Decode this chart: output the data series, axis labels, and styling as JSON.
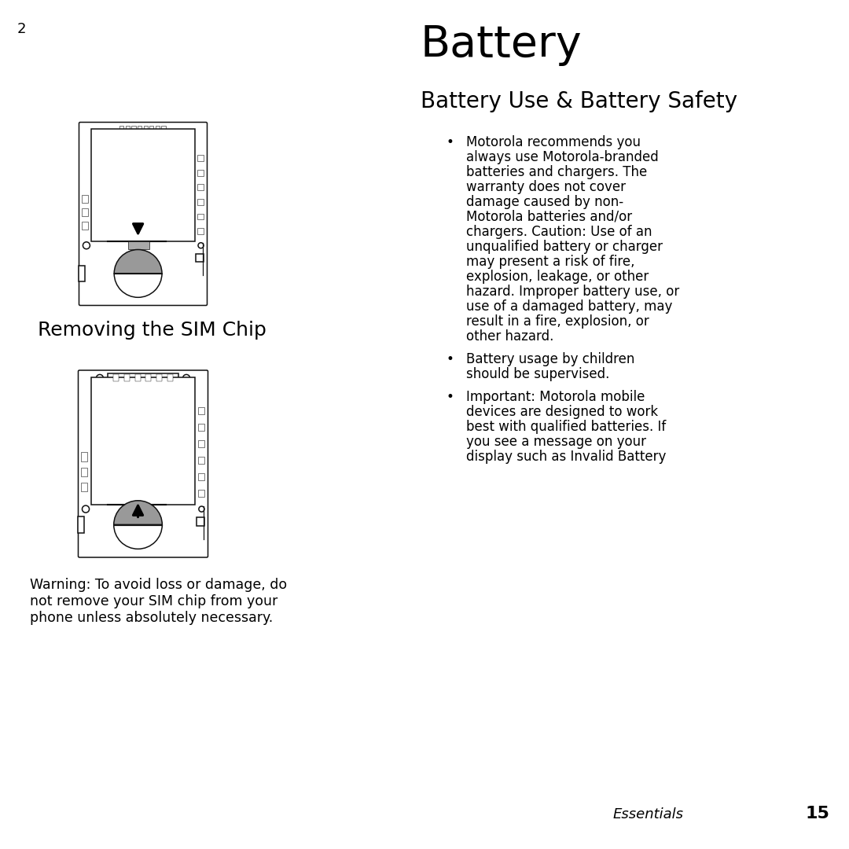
{
  "bg_color": "#ffffff",
  "text_color": "#000000",
  "page_number": "2",
  "section_title": "Battery",
  "subsection_title": "Battery Use & Battery Safety",
  "removing_sim_title": "Removing the SIM Chip",
  "warning_line1": "Warning: To avoid loss or damage, do",
  "warning_line2": "not remove your SIM chip from your",
  "warning_line3": "phone unless absolutely necessary.",
  "b1_lines": [
    "Motorola recommends you",
    "always use Motorola-branded",
    "batteries and chargers. The",
    "warranty does not cover",
    "damage caused by non-",
    "Motorola batteries and/or",
    "chargers. Caution: Use of an",
    "unqualified battery or charger",
    "may present a risk of fire,",
    "explosion, leakage, or other",
    "hazard. Improper battery use, or",
    "use of a damaged battery, may",
    "result in a fire, explosion, or",
    "other hazard."
  ],
  "b2_lines": [
    "Battery usage by children",
    "should be supervised."
  ],
  "b3_lines": [
    "Important: Motorola mobile",
    "devices are designed to work",
    "best with qualified batteries. If",
    "you see a message on your",
    "display such as Invalid Battery"
  ],
  "footer_label": "Essentials",
  "footer_num": "15",
  "draw_color": "#111111",
  "gray_fill": "#999999",
  "chip_fill": "#aaaaaa"
}
